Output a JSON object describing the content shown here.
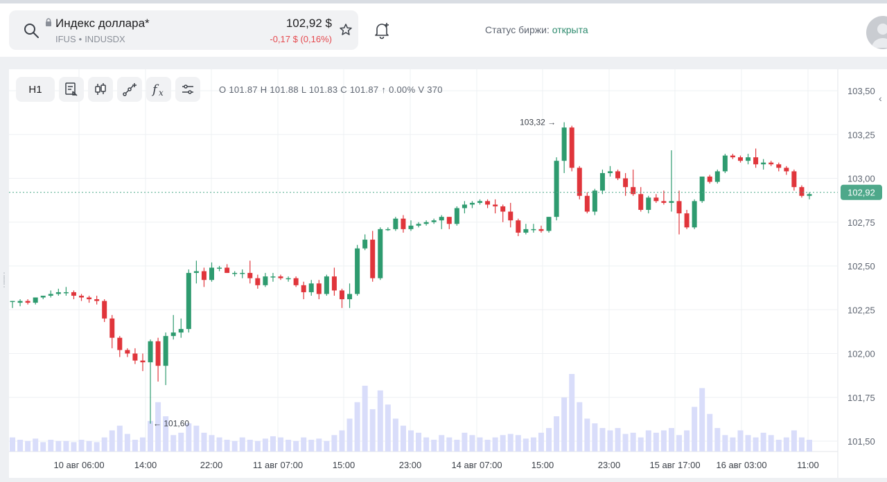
{
  "header": {
    "instrument_name": "Индекс доллара*",
    "ticker": "IFUS",
    "exchange_code": "INDUSDX",
    "price": "102,92 $",
    "change": "-0,17 $ (0,16%)",
    "status_label": "Статус биржи: ",
    "status_value": "открыта",
    "icons": [
      "search-icon",
      "lock-icon",
      "star-icon",
      "bell-icon",
      "avatar"
    ]
  },
  "toolbar": {
    "interval_label": "H1",
    "buttons": [
      "chart-type-icon",
      "candles-icon",
      "drawing-tools-icon",
      "indicators-icon",
      "settings-icon"
    ],
    "ohlc": "O 101.87  H 101.88  L 101.83  C 101.87  ↑ 0.00%  V 370"
  },
  "chart_data": {
    "type": "candlestick",
    "interval": "H1",
    "x_tick_labels": [
      "10 авг 06:00",
      "14:00",
      "22:00",
      "11 авг 07:00",
      "15:00",
      "23:00",
      "14 авг 07:00",
      "15:00",
      "23:00",
      "15 авг 17:00",
      "16 авг 03:00",
      "11:00"
    ],
    "y_tick_labels": [
      "103,50",
      "103,25",
      "103,00",
      "102,75",
      "102,50",
      "102,25",
      "102,00",
      "101,75",
      "101,50"
    ],
    "ylim": [
      101.45,
      103.55
    ],
    "current_price_label": "102,92",
    "current_price": 102.92,
    "max_label": "103,32",
    "max_value": 103.32,
    "min_label": "101,60",
    "min_value": 101.6,
    "colors": {
      "up": "#2e9b6f",
      "down": "#e0353b",
      "volume": "#d9ddfa",
      "price_line": "#4ea88a",
      "grid": "#eef0f3"
    },
    "candles": [
      [
        102.3,
        102.3,
        102.26,
        102.3
      ],
      [
        102.29,
        102.31,
        102.27,
        102.3
      ],
      [
        102.3,
        102.31,
        102.28,
        102.29
      ],
      [
        102.29,
        102.32,
        102.28,
        102.32
      ],
      [
        102.32,
        102.33,
        102.31,
        102.33
      ],
      [
        102.33,
        102.36,
        102.32,
        102.34
      ],
      [
        102.34,
        102.37,
        102.33,
        102.35
      ],
      [
        102.35,
        102.38,
        102.33,
        102.35
      ],
      [
        102.35,
        102.36,
        102.31,
        102.33
      ],
      [
        102.33,
        102.34,
        102.3,
        102.32
      ],
      [
        102.32,
        102.33,
        102.29,
        102.31
      ],
      [
        102.31,
        102.33,
        102.28,
        102.3
      ],
      [
        102.3,
        102.31,
        102.18,
        102.2
      ],
      [
        102.2,
        102.22,
        102.03,
        102.09
      ],
      [
        102.09,
        102.1,
        101.98,
        102.02
      ],
      [
        102.02,
        102.03,
        101.98,
        102.0
      ],
      [
        102.0,
        102.03,
        101.94,
        101.96
      ],
      [
        101.96,
        102.0,
        101.9,
        101.95
      ],
      [
        101.95,
        102.08,
        101.6,
        102.07
      ],
      [
        102.07,
        102.09,
        101.84,
        101.93
      ],
      [
        101.93,
        102.12,
        101.82,
        102.1
      ],
      [
        102.1,
        102.22,
        102.08,
        102.12
      ],
      [
        102.12,
        102.2,
        102.09,
        102.14
      ],
      [
        102.14,
        102.48,
        102.12,
        102.46
      ],
      [
        102.46,
        102.53,
        102.4,
        102.47
      ],
      [
        102.47,
        102.49,
        102.38,
        102.42
      ],
      [
        102.42,
        102.52,
        102.41,
        102.49
      ],
      [
        102.49,
        102.5,
        102.47,
        102.49
      ],
      [
        102.49,
        102.51,
        102.46,
        102.46
      ],
      [
        102.46,
        102.47,
        102.44,
        102.46
      ],
      [
        102.46,
        102.48,
        102.43,
        102.46
      ],
      [
        102.46,
        102.53,
        102.4,
        102.43
      ],
      [
        102.43,
        102.45,
        102.37,
        102.39
      ],
      [
        102.39,
        102.46,
        102.38,
        102.44
      ],
      [
        102.44,
        102.46,
        102.41,
        102.44
      ],
      [
        102.44,
        102.45,
        102.42,
        102.43
      ],
      [
        102.43,
        102.44,
        102.41,
        102.43
      ],
      [
        102.43,
        102.44,
        102.38,
        102.39
      ],
      [
        102.39,
        102.41,
        102.31,
        102.35
      ],
      [
        102.35,
        102.42,
        102.33,
        102.4
      ],
      [
        102.4,
        102.42,
        102.31,
        102.34
      ],
      [
        102.34,
        102.45,
        102.33,
        102.44
      ],
      [
        102.44,
        102.49,
        102.33,
        102.36
      ],
      [
        102.36,
        102.37,
        102.26,
        102.31
      ],
      [
        102.31,
        102.4,
        102.26,
        102.34
      ],
      [
        102.34,
        102.62,
        102.33,
        102.6
      ],
      [
        102.6,
        102.68,
        102.59,
        102.65
      ],
      [
        102.65,
        102.7,
        102.41,
        102.43
      ],
      [
        102.43,
        102.72,
        102.42,
        102.71
      ],
      [
        102.71,
        102.72,
        102.7,
        102.71
      ],
      [
        102.71,
        102.78,
        102.7,
        102.77
      ],
      [
        102.77,
        102.79,
        102.69,
        102.71
      ],
      [
        102.71,
        102.76,
        102.7,
        102.73
      ],
      [
        102.73,
        102.75,
        102.72,
        102.74
      ],
      [
        102.74,
        102.76,
        102.73,
        102.75
      ],
      [
        102.75,
        102.77,
        102.74,
        102.76
      ],
      [
        102.76,
        102.79,
        102.71,
        102.78
      ],
      [
        102.78,
        102.78,
        102.71,
        102.74
      ],
      [
        102.74,
        102.84,
        102.73,
        102.83
      ],
      [
        102.83,
        102.87,
        102.8,
        102.85
      ],
      [
        102.85,
        102.87,
        102.83,
        102.86
      ],
      [
        102.86,
        102.88,
        102.85,
        102.87
      ],
      [
        102.87,
        102.88,
        102.83,
        102.85
      ],
      [
        102.85,
        102.88,
        102.8,
        102.84
      ],
      [
        102.84,
        102.85,
        102.75,
        102.81
      ],
      [
        102.81,
        102.86,
        102.72,
        102.76
      ],
      [
        102.76,
        102.77,
        102.67,
        102.69
      ],
      [
        102.69,
        102.74,
        102.68,
        102.71
      ],
      [
        102.71,
        102.74,
        102.69,
        102.71
      ],
      [
        102.71,
        102.73,
        102.69,
        102.7
      ],
      [
        102.7,
        102.78,
        102.69,
        102.78
      ],
      [
        102.78,
        103.12,
        102.76,
        103.1
      ],
      [
        103.1,
        103.32,
        103.03,
        103.29
      ],
      [
        103.29,
        103.3,
        103.04,
        103.06
      ],
      [
        103.06,
        103.07,
        102.88,
        102.9
      ],
      [
        102.9,
        102.92,
        102.8,
        102.81
      ],
      [
        102.81,
        102.94,
        102.79,
        102.93
      ],
      [
        102.93,
        103.05,
        102.91,
        103.03
      ],
      [
        103.03,
        103.07,
        103.01,
        103.04
      ],
      [
        103.04,
        103.05,
        102.99,
        103.0
      ],
      [
        103.0,
        103.03,
        102.9,
        102.95
      ],
      [
        102.95,
        103.05,
        102.9,
        102.91
      ],
      [
        102.91,
        102.95,
        102.81,
        102.82
      ],
      [
        102.82,
        102.9,
        102.8,
        102.89
      ],
      [
        102.89,
        102.91,
        102.86,
        102.87
      ],
      [
        102.87,
        102.93,
        102.85,
        102.86
      ],
      [
        102.86,
        103.16,
        102.81,
        102.87
      ],
      [
        102.87,
        102.93,
        102.68,
        102.8
      ],
      [
        102.8,
        102.82,
        102.71,
        102.72
      ],
      [
        102.72,
        102.88,
        102.71,
        102.87
      ],
      [
        102.87,
        103.01,
        102.86,
        103.01
      ],
      [
        103.01,
        103.02,
        102.97,
        102.98
      ],
      [
        102.98,
        103.05,
        102.97,
        103.04
      ],
      [
        103.04,
        103.14,
        103.03,
        103.13
      ],
      [
        103.13,
        103.14,
        103.11,
        103.12
      ],
      [
        103.12,
        103.13,
        103.09,
        103.1
      ],
      [
        103.1,
        103.14,
        103.08,
        103.12
      ],
      [
        103.12,
        103.17,
        103.06,
        103.08
      ],
      [
        103.08,
        103.11,
        103.05,
        103.09
      ],
      [
        103.09,
        103.1,
        103.07,
        103.08
      ],
      [
        103.08,
        103.09,
        103.04,
        103.06
      ],
      [
        103.06,
        103.07,
        103.02,
        103.04
      ],
      [
        103.04,
        103.05,
        102.93,
        102.95
      ],
      [
        102.95,
        102.96,
        102.89,
        102.9
      ],
      [
        102.9,
        102.92,
        102.88,
        102.91
      ]
    ],
    "volumes": [
      12,
      10,
      9,
      11,
      8,
      10,
      9,
      9,
      8,
      10,
      9,
      8,
      12,
      18,
      22,
      15,
      10,
      12,
      26,
      42,
      30,
      14,
      16,
      24,
      22,
      16,
      14,
      12,
      10,
      9,
      12,
      10,
      9,
      11,
      13,
      12,
      10,
      9,
      12,
      10,
      11,
      9,
      14,
      18,
      28,
      42,
      56,
      36,
      52,
      40,
      28,
      22,
      18,
      16,
      12,
      10,
      14,
      12,
      10,
      16,
      14,
      12,
      10,
      12,
      14,
      15,
      14,
      11,
      12,
      16,
      20,
      30,
      46,
      66,
      42,
      28,
      24,
      20,
      18,
      20,
      15,
      16,
      12,
      18,
      16,
      18,
      20,
      14,
      18,
      38,
      54,
      32,
      20,
      14,
      12,
      18,
      14,
      12,
      16,
      14,
      10,
      12,
      18,
      12,
      10
    ]
  }
}
